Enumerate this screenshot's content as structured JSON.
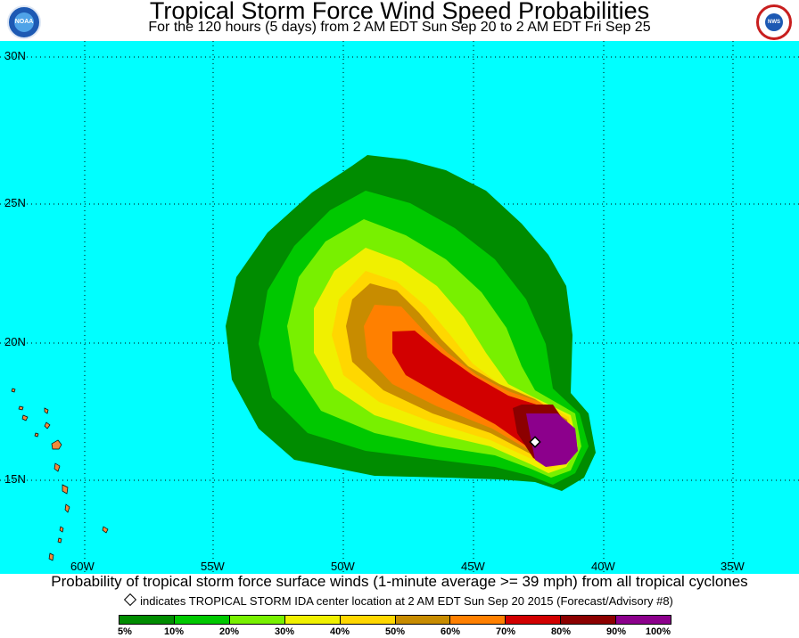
{
  "header": {
    "title": "Tropical Storm Force Wind Speed Probabilities",
    "subtitle": "For the 120 hours (5 days) from 2 AM EDT Sun Sep 20 to 2 AM EDT Fri Sep 25",
    "noaa_logo_text": "NOAA",
    "nws_logo_text": "NATIONAL WEATHER SERVICE"
  },
  "map": {
    "ocean_color": "#00ffff",
    "land_color": "#f08a3c",
    "lat_labels": [
      "30N",
      "25N",
      "20N",
      "15N"
    ],
    "lon_labels": [
      "60W",
      "55W",
      "50W",
      "45W",
      "40W",
      "35W"
    ],
    "storm_center_marker": "diamond"
  },
  "footer": {
    "caption": "Probability of tropical storm force surface winds (1-minute average >= 39 mph) from all tropical cyclones",
    "marker_note": "indicates TROPICAL STORM IDA center location at 2 AM EDT Sun Sep 20 2015 (Forecast/Advisory #8)"
  },
  "legend": {
    "colors": [
      "#008c00",
      "#00c800",
      "#78f000",
      "#f0f000",
      "#ffd700",
      "#c88c00",
      "#ff8000",
      "#d20000",
      "#8c0000",
      "#8c008c"
    ],
    "labels": [
      "5%",
      "10%",
      "20%",
      "30%",
      "40%",
      "50%",
      "60%",
      "70%",
      "80%",
      "90%",
      "100%"
    ]
  }
}
